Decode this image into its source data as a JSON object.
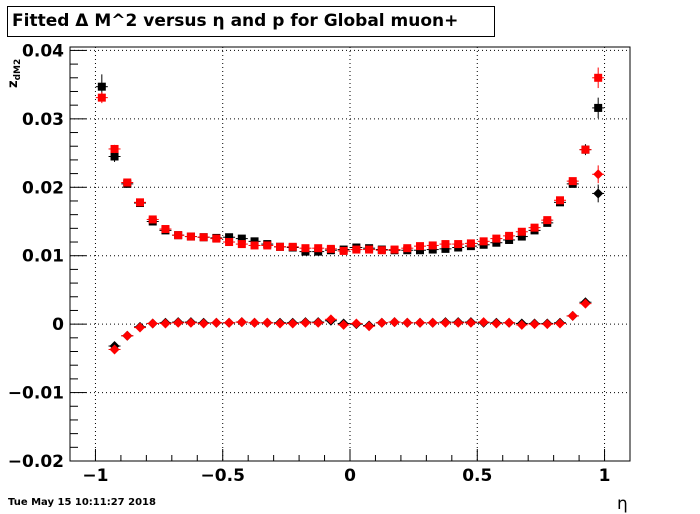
{
  "timestamp": "Tue May 15 10:11:27 2018",
  "chart_data": {
    "type": "scatter",
    "title": "Fitted Δ M^2 versus η and p for Global muon+",
    "xlabel": "η",
    "ylabel_main": "z",
    "ylabel_sub": "dM2",
    "xlim": [
      -1.1,
      1.1
    ],
    "ylim": [
      -0.02,
      0.0405
    ],
    "grid": true,
    "x_ticks": [
      -1,
      -0.5,
      0,
      0.5,
      1
    ],
    "x_tick_labels": [
      "−1",
      "−0.5",
      "0",
      "0.5",
      "1"
    ],
    "y_ticks": [
      -0.02,
      -0.01,
      0,
      0.01,
      0.02,
      0.03,
      0.04
    ],
    "y_tick_labels": [
      "−0.02",
      "−0.01",
      "0",
      "0.01",
      "0.02",
      "0.03",
      "0.04"
    ],
    "series": [
      {
        "marker": "square",
        "color": "#000000",
        "x": [
          -0.975,
          -0.925,
          -0.875,
          -0.825,
          -0.775,
          -0.725,
          -0.675,
          -0.625,
          -0.575,
          -0.525,
          -0.475,
          -0.425,
          -0.375,
          -0.325,
          -0.275,
          -0.225,
          -0.175,
          -0.125,
          -0.075,
          -0.025,
          0.025,
          0.075,
          0.125,
          0.175,
          0.225,
          0.275,
          0.325,
          0.375,
          0.425,
          0.475,
          0.525,
          0.575,
          0.625,
          0.675,
          0.725,
          0.775,
          0.825,
          0.875,
          0.925,
          0.975
        ],
        "y": [
          0.0347,
          0.0245,
          0.0205,
          0.0177,
          0.015,
          0.0137,
          0.013,
          0.0128,
          0.0127,
          0.0126,
          0.0127,
          0.0125,
          0.0121,
          0.0117,
          0.0113,
          0.0112,
          0.0106,
          0.0106,
          0.0108,
          0.0109,
          0.0112,
          0.0111,
          0.0109,
          0.0108,
          0.0108,
          0.0108,
          0.0109,
          0.011,
          0.0112,
          0.0114,
          0.0116,
          0.0119,
          0.0123,
          0.0128,
          0.0137,
          0.0148,
          0.0178,
          0.0205,
          0.0255,
          0.0316
        ],
        "yerr": [
          0.0018,
          0.0008,
          0.0005,
          0.0004,
          0.0003,
          0.0003,
          0.0002,
          0.0002,
          0.0002,
          0.0002,
          0.0002,
          0.0002,
          0.0002,
          0.0002,
          0.0002,
          0.0002,
          0.0002,
          0.0002,
          0.0002,
          0.0002,
          0.0002,
          0.0002,
          0.0002,
          0.0002,
          0.0002,
          0.0002,
          0.0002,
          0.0002,
          0.0002,
          0.0002,
          0.0002,
          0.0002,
          0.0002,
          0.0003,
          0.0003,
          0.0003,
          0.0004,
          0.0005,
          0.0008,
          0.0015
        ]
      },
      {
        "marker": "square",
        "color": "#ff0000",
        "x": [
          -0.975,
          -0.925,
          -0.875,
          -0.825,
          -0.775,
          -0.725,
          -0.675,
          -0.625,
          -0.575,
          -0.525,
          -0.475,
          -0.425,
          -0.375,
          -0.325,
          -0.275,
          -0.225,
          -0.175,
          -0.125,
          -0.075,
          -0.025,
          0.025,
          0.075,
          0.125,
          0.175,
          0.225,
          0.275,
          0.325,
          0.375,
          0.425,
          0.475,
          0.525,
          0.575,
          0.625,
          0.675,
          0.725,
          0.775,
          0.825,
          0.875,
          0.925,
          0.975
        ],
        "y": [
          0.0331,
          0.0256,
          0.0207,
          0.0178,
          0.0153,
          0.0139,
          0.013,
          0.0128,
          0.0127,
          0.0125,
          0.012,
          0.0117,
          0.0115,
          0.0115,
          0.0113,
          0.0113,
          0.0111,
          0.0111,
          0.011,
          0.0107,
          0.0109,
          0.0109,
          0.0108,
          0.0109,
          0.0111,
          0.0114,
          0.0115,
          0.0117,
          0.0117,
          0.0118,
          0.0121,
          0.0125,
          0.0129,
          0.0135,
          0.0141,
          0.0152,
          0.0181,
          0.0209,
          0.0255,
          0.036
        ],
        "yerr": [
          0.0008,
          0.0006,
          0.0004,
          0.0003,
          0.0003,
          0.0002,
          0.0002,
          0.0002,
          0.0002,
          0.0002,
          0.0002,
          0.0002,
          0.0002,
          0.0002,
          0.0002,
          0.0002,
          0.0002,
          0.0002,
          0.0002,
          0.0002,
          0.0002,
          0.0002,
          0.0002,
          0.0002,
          0.0002,
          0.0002,
          0.0002,
          0.0002,
          0.0002,
          0.0002,
          0.0002,
          0.0002,
          0.0002,
          0.0002,
          0.0002,
          0.0003,
          0.0003,
          0.0004,
          0.0006,
          0.0015
        ]
      },
      {
        "marker": "diamond",
        "color": "#000000",
        "x": [
          -0.925,
          -0.875,
          -0.825,
          -0.775,
          -0.725,
          -0.675,
          -0.625,
          -0.575,
          -0.525,
          -0.475,
          -0.425,
          -0.375,
          -0.325,
          -0.275,
          -0.225,
          -0.175,
          -0.125,
          -0.075,
          -0.025,
          0.025,
          0.075,
          0.125,
          0.175,
          0.225,
          0.275,
          0.325,
          0.375,
          0.425,
          0.475,
          0.525,
          0.575,
          0.625,
          0.675,
          0.725,
          0.775,
          0.825,
          0.875,
          0.925,
          0.975
        ],
        "y": [
          -0.0032,
          -0.0017,
          -0.0004,
          0.0001,
          0.0002,
          0.0003,
          0.0003,
          0.0002,
          0.0002,
          0.0002,
          0.0003,
          0.0002,
          0.0002,
          0.0002,
          0.0002,
          0.0003,
          0.0003,
          0.0005,
          0.0001,
          0.0,
          -0.0002,
          0.0002,
          0.0003,
          0.0002,
          0.0002,
          0.0002,
          0.0003,
          0.0003,
          0.0003,
          0.0002,
          0.0002,
          0.0002,
          0.0001,
          0.0001,
          0.0001,
          0.0002,
          0.0012,
          0.0032,
          0.0191
        ],
        "yerr": [
          0.0004,
          0.0003,
          0.0002,
          0.0002,
          0.0002,
          0.0002,
          0.0002,
          0.0002,
          0.0002,
          0.0002,
          0.0002,
          0.0002,
          0.0002,
          0.0002,
          0.0002,
          0.0002,
          0.0002,
          0.0002,
          0.0002,
          0.0002,
          0.0002,
          0.0002,
          0.0002,
          0.0002,
          0.0002,
          0.0002,
          0.0002,
          0.0002,
          0.0002,
          0.0002,
          0.0002,
          0.0002,
          0.0002,
          0.0002,
          0.0002,
          0.0002,
          0.0003,
          0.0004,
          0.0013
        ]
      },
      {
        "marker": "diamond",
        "color": "#ff0000",
        "x": [
          -0.925,
          -0.875,
          -0.825,
          -0.775,
          -0.725,
          -0.675,
          -0.625,
          -0.575,
          -0.525,
          -0.475,
          -0.425,
          -0.375,
          -0.325,
          -0.275,
          -0.225,
          -0.175,
          -0.125,
          -0.075,
          -0.025,
          0.025,
          0.075,
          0.125,
          0.175,
          0.225,
          0.275,
          0.325,
          0.375,
          0.425,
          0.475,
          0.525,
          0.575,
          0.625,
          0.675,
          0.725,
          0.775,
          0.825,
          0.875,
          0.925,
          0.975
        ],
        "y": [
          -0.0037,
          -0.0017,
          -0.0005,
          0.0001,
          0.0001,
          0.0002,
          0.0002,
          0.0001,
          0.0002,
          0.0002,
          0.0003,
          0.0002,
          0.0002,
          0.0001,
          0.0001,
          0.0002,
          0.0002,
          0.0007,
          -0.0001,
          0.0001,
          -0.0003,
          0.0002,
          0.0003,
          0.0002,
          0.0002,
          0.0002,
          0.0002,
          0.0002,
          0.0002,
          0.0003,
          0.0001,
          0.0002,
          -0.0001,
          0.0,
          0.0,
          0.0001,
          0.0012,
          0.003,
          0.0219
        ],
        "yerr": [
          0.0004,
          0.0003,
          0.0002,
          0.0002,
          0.0002,
          0.0002,
          0.0002,
          0.0002,
          0.0002,
          0.0002,
          0.0002,
          0.0002,
          0.0002,
          0.0002,
          0.0002,
          0.0002,
          0.0002,
          0.0002,
          0.0002,
          0.0002,
          0.0002,
          0.0002,
          0.0002,
          0.0002,
          0.0002,
          0.0002,
          0.0002,
          0.0002,
          0.0002,
          0.0002,
          0.0002,
          0.0002,
          0.0002,
          0.0002,
          0.0002,
          0.0002,
          0.0003,
          0.0004,
          0.0013
        ]
      }
    ]
  }
}
